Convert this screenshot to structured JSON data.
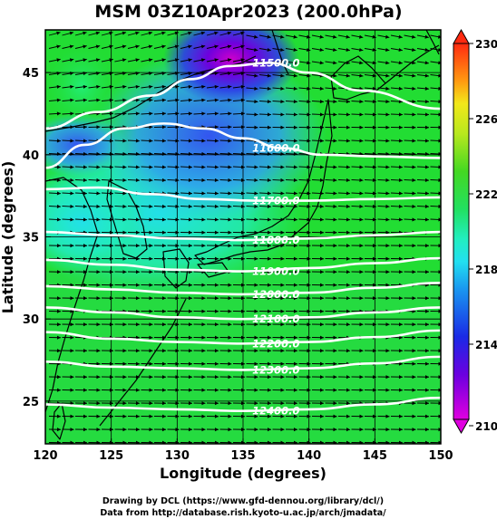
{
  "chart_data": {
    "type": "heatmap",
    "title": "MSM 03Z10Apr2023 (200.0hPa)",
    "xlabel": "Longitude (degrees)",
    "ylabel": "Latitude  (degrees)",
    "xlim": [
      120,
      150
    ],
    "ylim": [
      22.4,
      47.6
    ],
    "x_ticks": [
      "120",
      "125",
      "130",
      "135",
      "140",
      "145",
      "150"
    ],
    "y_ticks": [
      "25",
      "30",
      "35",
      "40",
      "45"
    ],
    "grid": true,
    "colorbar": {
      "placement": "right",
      "range": [
        210,
        230
      ],
      "ticks": [
        "210",
        "214",
        "218",
        "222",
        "226",
        "230"
      ]
    },
    "contours": [
      {
        "label": "11500.0",
        "lon": [
          120,
          124,
          128,
          131,
          134,
          137,
          140,
          144,
          150
        ],
        "lat": [
          41.6,
          42.6,
          43.6,
          44.6,
          45.4,
          45.6,
          45.0,
          43.9,
          42.8
        ]
      },
      {
        "label": "11600.0",
        "lon": [
          120,
          123,
          126,
          129,
          132,
          135,
          138,
          141,
          145,
          150
        ],
        "lat": [
          39.2,
          40.6,
          41.6,
          41.9,
          41.6,
          41.0,
          40.4,
          40.0,
          39.9,
          39.8
        ]
      },
      {
        "label": "11700.0",
        "lon": [
          120,
          124,
          128,
          132,
          136,
          140,
          145,
          150
        ],
        "lat": [
          37.9,
          38.0,
          37.6,
          37.3,
          37.2,
          37.2,
          37.3,
          37.4
        ]
      },
      {
        "label": "11800.0",
        "lon": [
          120,
          125,
          130,
          135,
          140,
          145,
          150
        ],
        "lat": [
          35.3,
          35.1,
          34.9,
          34.8,
          34.9,
          35.1,
          35.3
        ]
      },
      {
        "label": "11900.0",
        "lon": [
          120,
          125,
          130,
          135,
          140,
          145,
          150
        ],
        "lat": [
          33.6,
          33.3,
          33.0,
          32.9,
          33.1,
          33.4,
          33.7
        ]
      },
      {
        "label": "12000.0",
        "lon": [
          120,
          125,
          130,
          135,
          140,
          145,
          150
        ],
        "lat": [
          32.0,
          31.8,
          31.6,
          31.5,
          31.6,
          31.9,
          32.2
        ]
      },
      {
        "label": "12100.0",
        "lon": [
          120,
          125,
          130,
          135,
          140,
          145,
          150
        ],
        "lat": [
          30.7,
          30.4,
          30.1,
          30.0,
          30.1,
          30.4,
          30.7
        ]
      },
      {
        "label": "12200.0",
        "lon": [
          120,
          125,
          130,
          135,
          140,
          145,
          150
        ],
        "lat": [
          29.2,
          28.8,
          28.6,
          28.5,
          28.6,
          28.9,
          29.3
        ]
      },
      {
        "label": "12300.0",
        "lon": [
          120,
          125,
          130,
          135,
          140,
          145,
          150
        ],
        "lat": [
          27.4,
          27.1,
          27.0,
          26.9,
          27.0,
          27.3,
          27.7
        ]
      },
      {
        "label": "12400.0",
        "lon": [
          120,
          125,
          130,
          135,
          140,
          145,
          150
        ],
        "lat": [
          24.8,
          24.6,
          24.5,
          24.4,
          24.5,
          24.8,
          25.2
        ]
      }
    ]
  },
  "credits": {
    "line1": "Drawing by DCL (https://www.gfd-dennou.org/library/dcl/)",
    "line2": "Data from http://database.rish.kyoto-u.ac.jp/arch/jmadata/"
  },
  "colors": {
    "background_field": "#22dd33",
    "contour": "#ffffff",
    "arrow": "#000000",
    "coast": "#000000"
  }
}
